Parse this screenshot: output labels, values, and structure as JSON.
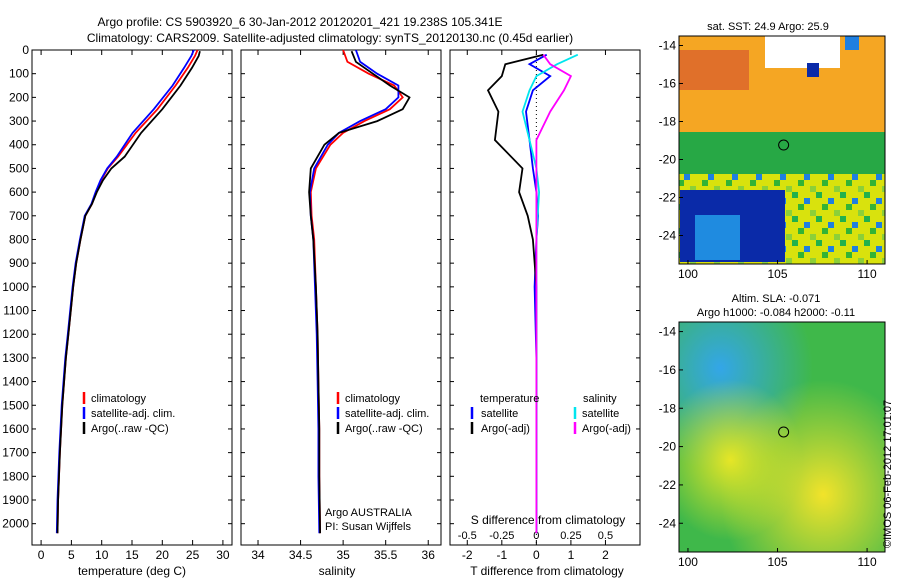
{
  "figure": {
    "title_line1": "Argo profile: CS 5903920_6 30-Jan-2012 20120201_421 19.238S 105.341E",
    "title_line2": "Climatology: CARS2009. Satellite-adjusted climatology: synTS_20120130.nc (0.45d earlier)",
    "footer": "©IMOS 06-Feb-2012 17:01:07"
  },
  "colors": {
    "climatology": "#ff0000",
    "satellite": "#0000ff",
    "argo": "#000000",
    "salinity_satellite": "#00e5ee",
    "salinity_argo": "#ff00ff"
  },
  "chart_data": [
    {
      "type": "line",
      "name": "temperature-profile",
      "xlabel": "temperature (deg C)",
      "xlim": [
        -1.5,
        31.5
      ],
      "ylim": [
        2090,
        0
      ],
      "xticks": [
        0,
        5,
        10,
        15,
        20,
        25,
        30
      ],
      "yticks": [
        0,
        100,
        200,
        300,
        400,
        500,
        600,
        700,
        800,
        900,
        1000,
        1100,
        1200,
        1300,
        1400,
        1500,
        1600,
        1700,
        1800,
        1900,
        2000
      ],
      "legend": [
        "climatology",
        "satellite-adj. clim.",
        "Argo(..raw -QC)"
      ],
      "series": [
        {
          "name": "climatology",
          "x": [
            25.8,
            25.4,
            24.2,
            22.2,
            19.2,
            15.6,
            12.7,
            11.0,
            9.9,
            9.1,
            8.4,
            7.3,
            6.5,
            5.8,
            5.3,
            4.9,
            4.5,
            4.1,
            3.8,
            3.5,
            3.3,
            3.1,
            2.95,
            2.8,
            2.7
          ],
          "y": [
            0,
            25,
            75,
            150,
            250,
            350,
            450,
            500,
            550,
            600,
            650,
            700,
            800,
            900,
            1000,
            1100,
            1200,
            1300,
            1400,
            1500,
            1600,
            1700,
            1800,
            1900,
            2040
          ]
        },
        {
          "name": "satellite-adj. clim.",
          "x": [
            25.2,
            24.8,
            23.6,
            21.7,
            18.6,
            15.1,
            12.5,
            10.9,
            9.8,
            9.0,
            8.3,
            7.2,
            6.4,
            5.7,
            5.2,
            4.8,
            4.4,
            4.0,
            3.7,
            3.4,
            3.2,
            3.0,
            2.85,
            2.7,
            2.6
          ],
          "y": [
            0,
            25,
            75,
            150,
            250,
            350,
            450,
            500,
            550,
            600,
            650,
            700,
            800,
            900,
            1000,
            1100,
            1200,
            1300,
            1400,
            1500,
            1600,
            1700,
            1800,
            1900,
            2040
          ]
        },
        {
          "name": "Argo(..raw -QC)",
          "x": [
            26.2,
            26.0,
            24.9,
            23.0,
            20.0,
            16.5,
            13.8,
            11.6,
            10.2,
            9.2,
            8.4,
            7.3,
            6.5,
            5.8,
            5.3,
            4.9,
            4.5,
            4.1,
            3.8,
            3.5,
            3.3,
            3.1,
            2.95,
            2.8,
            2.7
          ],
          "y": [
            5,
            25,
            75,
            150,
            250,
            350,
            450,
            500,
            550,
            600,
            650,
            700,
            800,
            900,
            1000,
            1100,
            1200,
            1300,
            1400,
            1500,
            1600,
            1700,
            1800,
            1900,
            2040
          ]
        }
      ]
    },
    {
      "type": "line",
      "name": "salinity-profile",
      "xlabel": "salinity",
      "xlim": [
        33.8,
        36.15
      ],
      "ylim": [
        2090,
        0
      ],
      "xticks": [
        34,
        34.5,
        35,
        35.5,
        36
      ],
      "legend": [
        "climatology",
        "satellite-adj. clim.",
        "Argo(..raw -QC)"
      ],
      "annotations": [
        "Argo AUSTRALIA",
        "PI: Susan Wijffels"
      ],
      "series": [
        {
          "name": "climatology",
          "x": [
            35.0,
            35.05,
            35.3,
            35.6,
            35.7,
            35.55,
            35.25,
            35.0,
            34.85,
            34.68,
            34.62,
            34.63,
            34.66,
            34.68,
            34.7,
            34.71,
            34.72,
            34.72,
            34.73
          ],
          "y": [
            0,
            50,
            100,
            150,
            200,
            250,
            300,
            350,
            400,
            500,
            600,
            700,
            800,
            1000,
            1200,
            1400,
            1600,
            1800,
            2040
          ]
        },
        {
          "name": "satellite-adj. clim.",
          "x": [
            35.15,
            35.2,
            35.4,
            35.65,
            35.65,
            35.5,
            35.2,
            34.95,
            34.82,
            34.66,
            34.61,
            34.62,
            34.65,
            34.67,
            34.69,
            34.7,
            34.71,
            34.71,
            34.72
          ],
          "y": [
            0,
            50,
            100,
            150,
            200,
            250,
            300,
            350,
            400,
            500,
            600,
            700,
            800,
            1000,
            1200,
            1400,
            1600,
            1800,
            2040
          ]
        },
        {
          "name": "Argo(..raw -QC)",
          "x": [
            35.1,
            35.15,
            35.35,
            35.55,
            35.78,
            35.7,
            35.4,
            34.95,
            34.78,
            34.62,
            34.6,
            34.62,
            34.65,
            34.68,
            34.7,
            34.71,
            34.72,
            34.72,
            34.73
          ],
          "y": [
            5,
            50,
            100,
            150,
            200,
            250,
            300,
            350,
            400,
            500,
            600,
            700,
            800,
            1000,
            1200,
            1400,
            1600,
            1800,
            2040
          ]
        }
      ]
    },
    {
      "type": "line",
      "name": "difference-profile",
      "xlabel": "T difference from climatology",
      "top_axis_label": "S difference from climatology",
      "xlim": [
        -2.5,
        3.0
      ],
      "s_scale": 4,
      "ylim": [
        2090,
        0
      ],
      "xticks": [
        -2,
        -1,
        0,
        1,
        2
      ],
      "s_ticks": [
        -0.5,
        -0.25,
        0,
        0.25,
        0.5
      ],
      "legend_groups": [
        "temperature",
        "salinity"
      ],
      "legend": [
        "satellite",
        "Argo(-adj)",
        "satellite",
        "Argo(-adj)"
      ],
      "series": [
        {
          "name": "temperature satellite",
          "quantity": "T",
          "x": [
            0.3,
            -0.2,
            0.4,
            -0.1,
            -0.3,
            -0.2,
            -0.1,
            0.0,
            0.05,
            0.0,
            -0.05,
            0.0,
            0.0,
            0.0
          ],
          "y": [
            20,
            60,
            110,
            170,
            260,
            380,
            500,
            600,
            700,
            800,
            1000,
            1300,
            1700,
            2040
          ]
        },
        {
          "name": "temperature Argo(-adj)",
          "quantity": "T",
          "x": [
            0.2,
            -0.9,
            -1.0,
            -1.4,
            -1.1,
            -1.2,
            -0.4,
            -0.5,
            -0.25,
            -0.1,
            0.0,
            0.0,
            0.0,
            0.0
          ],
          "y": [
            20,
            60,
            110,
            170,
            260,
            380,
            500,
            600,
            700,
            800,
            1000,
            1300,
            1700,
            2040
          ]
        },
        {
          "name": "salinity satellite",
          "quantity": "S",
          "x": [
            0.3,
            0.15,
            0.0,
            -0.05,
            -0.1,
            -0.05,
            0.0,
            0.02,
            0.01,
            0.0,
            0.0,
            0.0,
            0.0,
            0.0
          ],
          "y": [
            20,
            60,
            110,
            170,
            260,
            380,
            500,
            600,
            700,
            800,
            1000,
            1300,
            1700,
            2040
          ]
        },
        {
          "name": "salinity Argo(-adj)",
          "quantity": "S",
          "x": [
            0.05,
            0.1,
            0.25,
            0.2,
            0.1,
            0.0,
            0.0,
            0.0,
            0.0,
            0.0,
            0.0,
            0.0,
            0.0,
            0.0
          ],
          "y": [
            20,
            60,
            110,
            170,
            260,
            380,
            500,
            600,
            700,
            800,
            1000,
            1300,
            1700,
            2040
          ]
        }
      ]
    },
    {
      "type": "heatmap",
      "name": "sst-map",
      "title": "sat. SST: 24.9  Argo: 25.9",
      "xlim": [
        99.5,
        111
      ],
      "ylim": [
        -25.5,
        -13.5
      ],
      "xticks": [
        100,
        105,
        110
      ],
      "yticks": [
        -14,
        -16,
        -18,
        -20,
        -22,
        -24
      ],
      "marker": {
        "lon": 105.341,
        "lat": -19.238
      }
    },
    {
      "type": "heatmap",
      "name": "sla-map",
      "title_line1": "Altim. SLA: -0.071",
      "title_line2": "Argo h1000: -0.084  h2000: -0.11",
      "xlim": [
        99.5,
        111
      ],
      "ylim": [
        -25.5,
        -13.5
      ],
      "xticks": [
        100,
        105,
        110
      ],
      "yticks": [
        -14,
        -16,
        -18,
        -20,
        -22,
        -24
      ],
      "marker": {
        "lon": 105.341,
        "lat": -19.238
      }
    }
  ]
}
